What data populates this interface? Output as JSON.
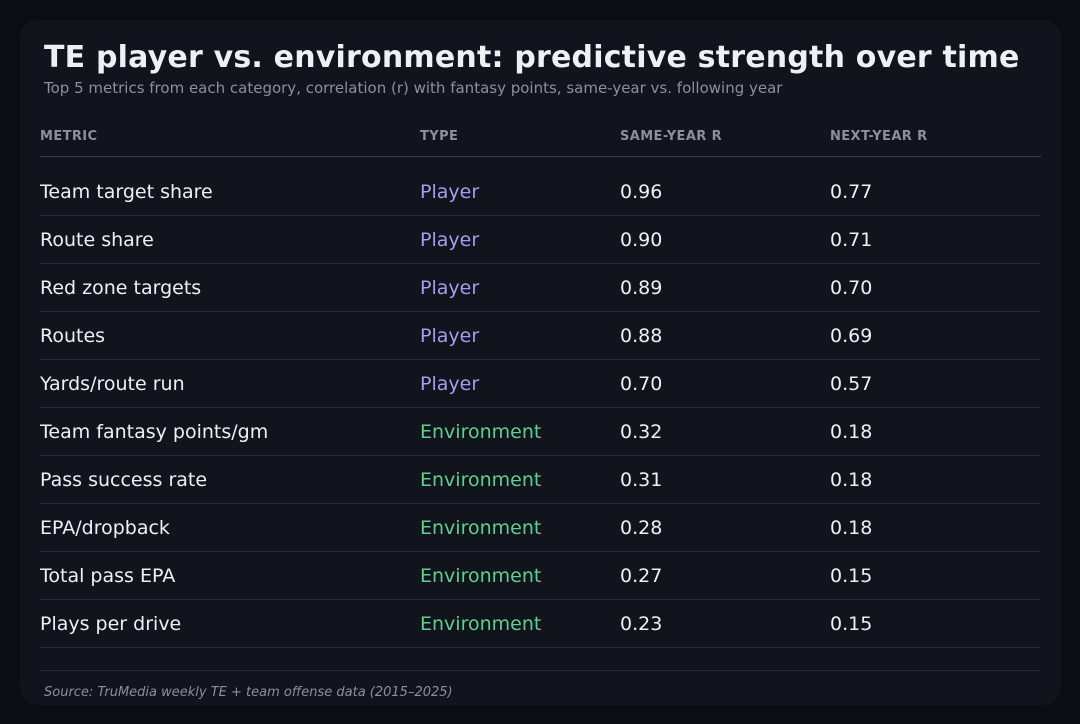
{
  "title": "TE player vs. environment: predictive strength over time",
  "subtitle": "Top 5 metrics from each category, correlation (r) with fantasy points, same-year vs. following year",
  "colors": {
    "background": "#0b0d13",
    "card": "#11141c",
    "player": "#a99cf0",
    "environment": "#5fcf8d"
  },
  "chart_data": {
    "type": "table",
    "columns": [
      "METRIC",
      "TYPE",
      "SAME-YEAR R",
      "NEXT-YEAR R"
    ],
    "rows": [
      {
        "metric": "Team target share",
        "type": "Player",
        "same_year_r": "0.96",
        "next_year_r": "0.77"
      },
      {
        "metric": "Route share",
        "type": "Player",
        "same_year_r": "0.90",
        "next_year_r": "0.71"
      },
      {
        "metric": "Red zone targets",
        "type": "Player",
        "same_year_r": "0.89",
        "next_year_r": "0.70"
      },
      {
        "metric": "Routes",
        "type": "Player",
        "same_year_r": "0.88",
        "next_year_r": "0.69"
      },
      {
        "metric": "Yards/route run",
        "type": "Player",
        "same_year_r": "0.70",
        "next_year_r": "0.57"
      },
      {
        "metric": "Team fantasy points/gm",
        "type": "Environment",
        "same_year_r": "0.32",
        "next_year_r": "0.18"
      },
      {
        "metric": "Pass success rate",
        "type": "Environment",
        "same_year_r": "0.31",
        "next_year_r": "0.18"
      },
      {
        "metric": "EPA/dropback",
        "type": "Environment",
        "same_year_r": "0.28",
        "next_year_r": "0.18"
      },
      {
        "metric": "Total pass EPA",
        "type": "Environment",
        "same_year_r": "0.27",
        "next_year_r": "0.15"
      },
      {
        "metric": "Plays per drive",
        "type": "Environment",
        "same_year_r": "0.23",
        "next_year_r": "0.15"
      }
    ]
  },
  "source": "Source: TruMedia weekly TE + team offense data (2015–2025)"
}
